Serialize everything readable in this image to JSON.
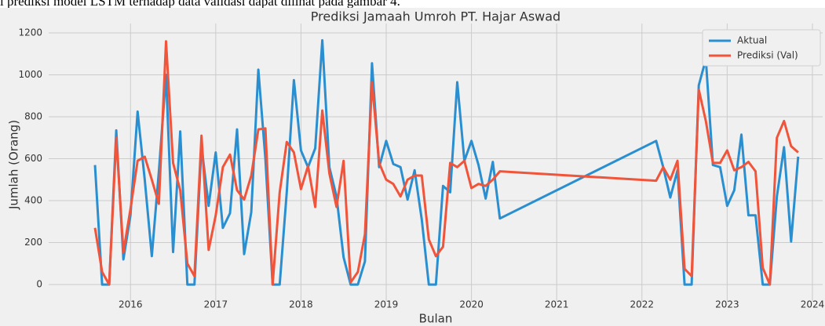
{
  "context_text": "i prediksi model LSTM terhadap data validasi dapat dilihat pada gambar 4.",
  "chart_data": {
    "type": "line",
    "title": "Prediksi Jamaah Umroh PT. Hajar Aswad",
    "xlabel": "Bulan",
    "ylabel": "Jumlah (Orang)",
    "grid": true,
    "legend": "upper right",
    "xlim": [
      2015.04,
      2024.12
    ],
    "xticks": [
      2016,
      2017,
      2018,
      2019,
      2020,
      2021,
      2022,
      2023,
      2024
    ],
    "ylim": [
      -82,
      1245
    ],
    "yticks": [
      0,
      200,
      400,
      600,
      800,
      1000,
      1200
    ],
    "x": [
      2015.583,
      2015.667,
      2015.75,
      2015.833,
      2015.917,
      2016,
      2016.083,
      2016.167,
      2016.25,
      2016.333,
      2016.417,
      2016.5,
      2016.583,
      2016.667,
      2016.75,
      2016.833,
      2016.917,
      2017,
      2017.083,
      2017.167,
      2017.25,
      2017.333,
      2017.417,
      2017.5,
      2017.583,
      2017.667,
      2017.75,
      2017.833,
      2017.917,
      2018,
      2018.083,
      2018.167,
      2018.25,
      2018.333,
      2018.417,
      2018.5,
      2018.583,
      2018.667,
      2018.75,
      2018.833,
      2018.917,
      2019,
      2019.083,
      2019.167,
      2019.25,
      2019.333,
      2019.417,
      2019.5,
      2019.583,
      2019.667,
      2019.75,
      2019.833,
      2019.917,
      2020,
      2020.083,
      2020.167,
      2020.25,
      2020.333,
      2022.167,
      2022.25,
      2022.333,
      2022.417,
      2022.5,
      2022.583,
      2022.667,
      2022.75,
      2022.833,
      2022.917,
      2023,
      2023.083,
      2023.167,
      2023.25,
      2023.333,
      2023.417,
      2023.5,
      2023.583,
      2023.667,
      2023.75,
      2023.833
    ],
    "series": [
      {
        "name": "Aktual",
        "color": "#2a8fd0",
        "values": [
          570,
          0,
          0,
          735,
          120,
          330,
          825,
          500,
          135,
          540,
          1000,
          155,
          730,
          0,
          0,
          660,
          375,
          630,
          270,
          340,
          740,
          145,
          345,
          1025,
          600,
          0,
          0,
          440,
          975,
          640,
          560,
          650,
          1165,
          560,
          420,
          130,
          0,
          0,
          110,
          1055,
          560,
          685,
          575,
          560,
          405,
          545,
          310,
          0,
          0,
          470,
          440,
          965,
          590,
          685,
          570,
          410,
          585,
          315,
          685,
          560,
          415,
          545,
          0,
          0,
          950,
          1075,
          570,
          560,
          375,
          450,
          715,
          330,
          330,
          0,
          0,
          420,
          655,
          205,
          610
        ]
      },
      {
        "name": "Prediksi (Val)",
        "color": "#f0543a",
        "values": [
          270,
          60,
          0,
          700,
          155,
          360,
          590,
          610,
          500,
          385,
          1160,
          580,
          450,
          100,
          40,
          710,
          165,
          330,
          560,
          620,
          450,
          405,
          520,
          740,
          745,
          0,
          440,
          680,
          630,
          455,
          565,
          370,
          830,
          530,
          370,
          590,
          10,
          60,
          240,
          965,
          580,
          500,
          480,
          420,
          500,
          520,
          520,
          215,
          135,
          180,
          580,
          560,
          590,
          460,
          480,
          470,
          500,
          540,
          495,
          560,
          500,
          590,
          75,
          40,
          930,
          780,
          580,
          580,
          640,
          545,
          560,
          585,
          540,
          80,
          0,
          700,
          780,
          660,
          630
        ]
      }
    ]
  }
}
